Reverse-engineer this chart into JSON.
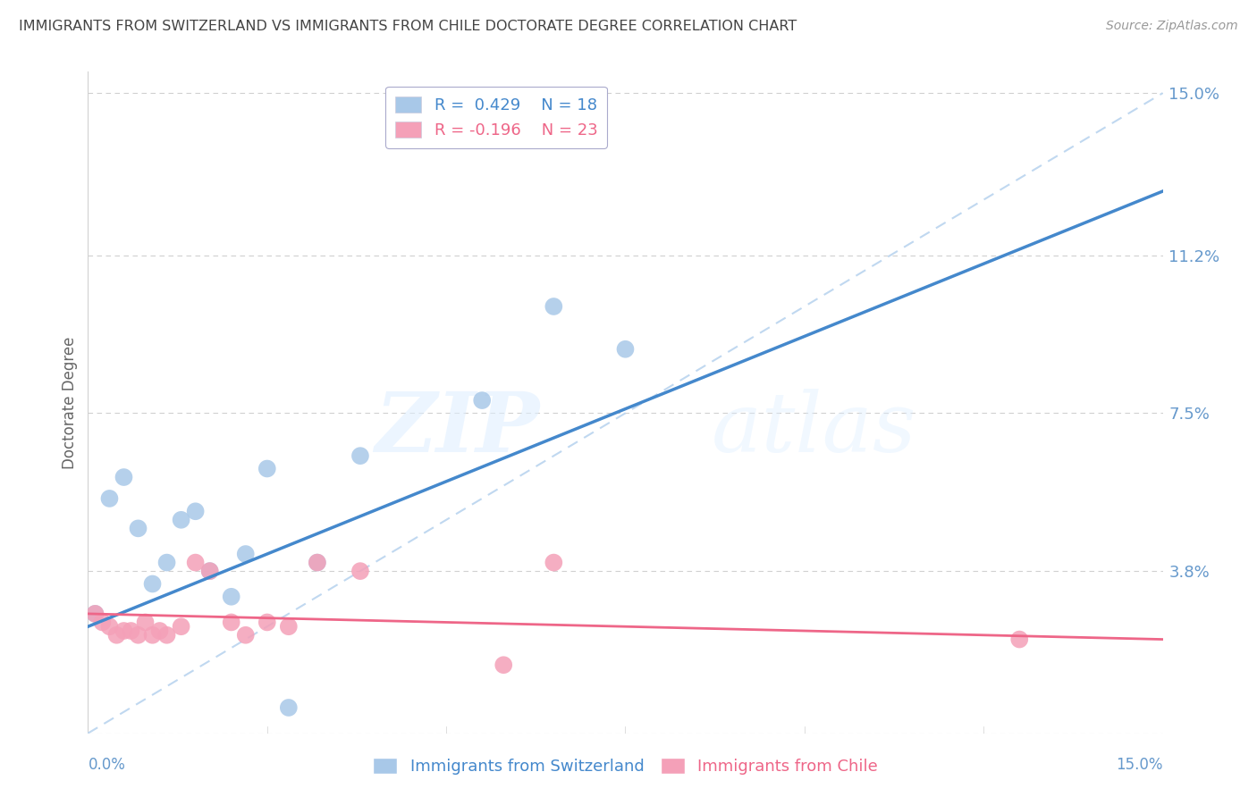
{
  "title": "IMMIGRANTS FROM SWITZERLAND VS IMMIGRANTS FROM CHILE DOCTORATE DEGREE CORRELATION CHART",
  "source": "Source: ZipAtlas.com",
  "ylabel": "Doctorate Degree",
  "yticks": [
    0.0,
    0.038,
    0.075,
    0.112,
    0.15
  ],
  "ytick_labels": [
    "",
    "3.8%",
    "7.5%",
    "11.2%",
    "15.0%"
  ],
  "xticks": [
    0.0,
    0.025,
    0.05,
    0.075,
    0.1,
    0.125,
    0.15
  ],
  "xlim": [
    0.0,
    0.15
  ],
  "ylim": [
    0.0,
    0.155
  ],
  "swiss_color": "#a8c8e8",
  "chile_color": "#f4a0b8",
  "swiss_line_color": "#4488cc",
  "chile_line_color": "#ee6688",
  "diagonal_color": "#c0d8f0",
  "swiss_x": [
    0.001,
    0.003,
    0.005,
    0.007,
    0.009,
    0.011,
    0.013,
    0.015,
    0.017,
    0.02,
    0.022,
    0.025,
    0.028,
    0.032,
    0.038,
    0.055,
    0.065,
    0.075
  ],
  "swiss_y": [
    0.028,
    0.055,
    0.06,
    0.048,
    0.035,
    0.04,
    0.05,
    0.052,
    0.038,
    0.032,
    0.042,
    0.062,
    0.006,
    0.04,
    0.065,
    0.078,
    0.1,
    0.09
  ],
  "chile_x": [
    0.001,
    0.002,
    0.003,
    0.004,
    0.005,
    0.006,
    0.007,
    0.008,
    0.009,
    0.01,
    0.011,
    0.013,
    0.015,
    0.017,
    0.02,
    0.022,
    0.025,
    0.028,
    0.032,
    0.038,
    0.058,
    0.065,
    0.13
  ],
  "chile_y": [
    0.028,
    0.026,
    0.025,
    0.023,
    0.024,
    0.024,
    0.023,
    0.026,
    0.023,
    0.024,
    0.023,
    0.025,
    0.04,
    0.038,
    0.026,
    0.023,
    0.026,
    0.025,
    0.04,
    0.038,
    0.016,
    0.04,
    0.022
  ],
  "swiss_intercept": 0.025,
  "swiss_slope": 0.68,
  "chile_intercept": 0.028,
  "chile_slope": -0.04,
  "watermark_zip": "ZIP",
  "watermark_atlas": "atlas",
  "background_color": "#ffffff",
  "grid_color": "#d0d0d0",
  "title_color": "#444444",
  "tick_label_color": "#6699cc",
  "legend_border_color": "#aaaacc"
}
